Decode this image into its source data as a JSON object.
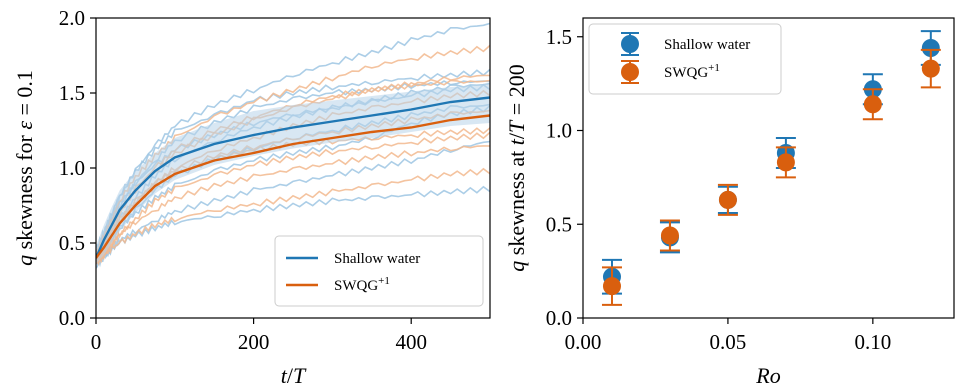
{
  "colors": {
    "shallow_water": "#1f77b4",
    "swqg": "#d95f0e",
    "shallow_water_light": "#9ec6e3",
    "swqg_light": "#f2b98e",
    "band": "#b8d3ea"
  },
  "chart_data": [
    {
      "type": "line",
      "xlabel": "t/T",
      "ylabel": "q skewness for ε = 0.1",
      "xlim": [
        0,
        500
      ],
      "ylim": [
        0.0,
        2.0
      ],
      "x_ticks": [
        "0",
        "200",
        "400"
      ],
      "y_ticks": [
        "0.0",
        "0.5",
        "1.0",
        "1.5",
        "2.0"
      ],
      "x_tick_values": [
        0,
        200,
        400
      ],
      "y_tick_values": [
        0.0,
        0.5,
        1.0,
        1.5,
        2.0
      ],
      "grid": false,
      "legend_position": "bottom-right",
      "x": [
        0,
        10,
        20,
        30,
        50,
        75,
        100,
        150,
        200,
        250,
        300,
        350,
        400,
        450,
        500
      ],
      "series": [
        {
          "name": "Shallow water",
          "color_key": "shallow_water",
          "values": [
            0.4,
            0.52,
            0.62,
            0.72,
            0.85,
            0.98,
            1.07,
            1.16,
            1.22,
            1.27,
            1.31,
            1.35,
            1.39,
            1.44,
            1.47
          ]
        },
        {
          "name": "SWQG+1",
          "color_key": "swqg",
          "values": [
            0.4,
            0.47,
            0.55,
            0.63,
            0.75,
            0.88,
            0.96,
            1.05,
            1.1,
            1.16,
            1.2,
            1.24,
            1.27,
            1.32,
            1.35
          ]
        }
      ],
      "band": {
        "color_key": "band",
        "upper": [
          0.48,
          0.62,
          0.74,
          0.85,
          0.98,
          1.1,
          1.2,
          1.3,
          1.38,
          1.42,
          1.45,
          1.48,
          1.51,
          1.54,
          1.56
        ],
        "lower": [
          0.36,
          0.42,
          0.5,
          0.58,
          0.7,
          0.83,
          0.92,
          1.02,
          1.08,
          1.13,
          1.17,
          1.2,
          1.24,
          1.28,
          1.3
        ]
      },
      "ensemble": [
        {
          "color_key": "shallow_water_light",
          "values": [
            0.4,
            0.55,
            0.68,
            0.8,
            0.98,
            1.15,
            1.28,
            1.42,
            1.52,
            1.62,
            1.7,
            1.77,
            1.85,
            1.92,
            1.96
          ]
        },
        {
          "color_key": "shallow_water_light",
          "values": [
            0.45,
            0.58,
            0.7,
            0.82,
            0.98,
            1.12,
            1.24,
            1.35,
            1.45,
            1.5,
            1.54,
            1.57,
            1.6,
            1.62,
            1.64
          ]
        },
        {
          "color_key": "shallow_water_light",
          "values": [
            0.38,
            0.5,
            0.62,
            0.74,
            0.9,
            1.05,
            1.18,
            1.3,
            1.4,
            1.46,
            1.5,
            1.52,
            1.55,
            1.57,
            1.58
          ]
        },
        {
          "color_key": "shallow_water_light",
          "values": [
            0.42,
            0.48,
            0.57,
            0.66,
            0.8,
            0.95,
            1.06,
            1.18,
            1.27,
            1.34,
            1.4,
            1.44,
            1.48,
            1.52,
            1.54
          ]
        },
        {
          "color_key": "shallow_water_light",
          "values": [
            0.36,
            0.44,
            0.52,
            0.6,
            0.72,
            0.85,
            0.95,
            1.06,
            1.13,
            1.2,
            1.25,
            1.3,
            1.35,
            1.4,
            1.42
          ]
        },
        {
          "color_key": "shallow_water_light",
          "values": [
            0.4,
            0.46,
            0.53,
            0.6,
            0.7,
            0.8,
            0.88,
            0.98,
            1.05,
            1.1,
            1.14,
            1.2,
            1.3,
            1.36,
            1.4
          ]
        },
        {
          "color_key": "shallow_water_light",
          "values": [
            0.38,
            0.42,
            0.47,
            0.52,
            0.58,
            0.65,
            0.71,
            0.78,
            0.85,
            0.9,
            0.95,
            1.0,
            1.05,
            1.12,
            1.18
          ]
        },
        {
          "color_key": "shallow_water_light",
          "values": [
            0.35,
            0.4,
            0.45,
            0.5,
            0.55,
            0.6,
            0.64,
            0.68,
            0.72,
            0.75,
            0.78,
            0.8,
            0.82,
            0.84,
            0.86
          ]
        },
        {
          "color_key": "shallow_water_light",
          "values": [
            0.44,
            0.56,
            0.66,
            0.76,
            0.9,
            1.02,
            1.12,
            1.22,
            1.3,
            1.36,
            1.4,
            1.45,
            1.5,
            1.54,
            1.56
          ]
        },
        {
          "color_key": "swqg_light",
          "values": [
            0.42,
            0.55,
            0.66,
            0.78,
            0.94,
            1.08,
            1.2,
            1.34,
            1.44,
            1.52,
            1.6,
            1.68,
            1.73,
            1.77,
            1.8
          ]
        },
        {
          "color_key": "swqg_light",
          "values": [
            0.4,
            0.5,
            0.6,
            0.7,
            0.85,
            0.98,
            1.1,
            1.22,
            1.32,
            1.4,
            1.46,
            1.52,
            1.56,
            1.6,
            1.62
          ]
        },
        {
          "color_key": "swqg_light",
          "values": [
            0.38,
            0.45,
            0.54,
            0.63,
            0.76,
            0.9,
            1.0,
            1.12,
            1.2,
            1.28,
            1.35,
            1.4,
            1.44,
            1.48,
            1.5
          ]
        },
        {
          "color_key": "swqg_light",
          "values": [
            0.44,
            0.5,
            0.58,
            0.66,
            0.78,
            0.9,
            0.98,
            1.08,
            1.14,
            1.2,
            1.24,
            1.28,
            1.32,
            1.36,
            1.38
          ]
        },
        {
          "color_key": "swqg_light",
          "values": [
            0.36,
            0.42,
            0.49,
            0.56,
            0.66,
            0.78,
            0.86,
            0.95,
            1.02,
            1.07,
            1.11,
            1.14,
            1.17,
            1.2,
            1.22
          ]
        },
        {
          "color_key": "swqg_light",
          "values": [
            0.4,
            0.44,
            0.5,
            0.56,
            0.64,
            0.72,
            0.8,
            0.88,
            0.94,
            0.99,
            1.03,
            1.07,
            1.1,
            1.13,
            1.15
          ]
        },
        {
          "color_key": "swqg_light",
          "values": [
            0.38,
            0.42,
            0.46,
            0.5,
            0.56,
            0.62,
            0.66,
            0.72,
            0.76,
            0.8,
            0.84,
            0.88,
            0.92,
            0.96,
            0.98
          ]
        },
        {
          "color_key": "swqg_light",
          "values": [
            0.42,
            0.52,
            0.62,
            0.72,
            0.86,
            1.0,
            1.12,
            1.25,
            1.34,
            1.42,
            1.48,
            1.52,
            1.55,
            1.57,
            1.58
          ]
        },
        {
          "color_key": "swqg_light",
          "values": [
            0.4,
            0.48,
            0.56,
            0.64,
            0.76,
            0.88,
            0.96,
            1.06,
            1.12,
            1.16,
            1.18,
            1.2,
            1.22,
            1.24,
            1.25
          ]
        }
      ]
    },
    {
      "type": "scatter",
      "xlabel": "Ro",
      "ylabel": "q skewness at t/T = 200",
      "xlim": [
        0.0,
        0.128
      ],
      "ylim": [
        0.0,
        1.6
      ],
      "x_ticks": [
        "0.00",
        "0.05",
        "0.10"
      ],
      "y_ticks": [
        "0.0",
        "0.5",
        "1.0",
        "1.5"
      ],
      "x_tick_values": [
        0.0,
        0.05,
        0.1
      ],
      "y_tick_values": [
        0.0,
        0.5,
        1.0,
        1.5
      ],
      "grid": false,
      "legend_position": "top-left",
      "series": [
        {
          "name": "Shallow water",
          "color_key": "shallow_water",
          "x": [
            0.01,
            0.03,
            0.05,
            0.07,
            0.1,
            0.12
          ],
          "values": [
            0.22,
            0.43,
            0.63,
            0.88,
            1.22,
            1.44
          ],
          "errors": [
            0.09,
            0.08,
            0.07,
            0.08,
            0.08,
            0.09
          ]
        },
        {
          "name": "SWQG+1",
          "color_key": "swqg",
          "x": [
            0.01,
            0.03,
            0.05,
            0.07,
            0.1,
            0.12
          ],
          "values": [
            0.17,
            0.44,
            0.63,
            0.83,
            1.14,
            1.33
          ],
          "errors": [
            0.1,
            0.08,
            0.08,
            0.08,
            0.08,
            0.1
          ]
        }
      ]
    }
  ]
}
